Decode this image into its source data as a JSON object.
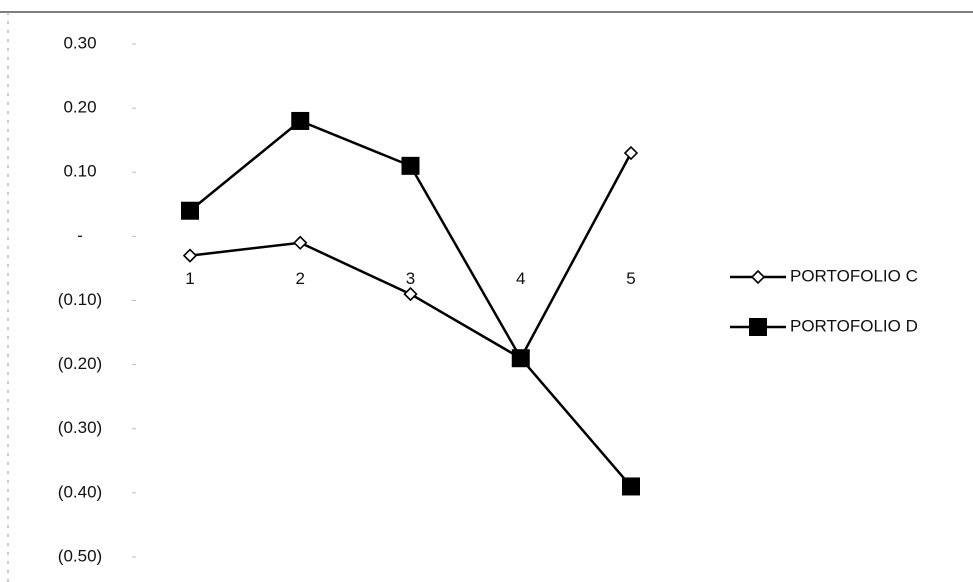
{
  "chart_data": {
    "type": "line",
    "categories": [
      "1",
      "2",
      "3",
      "4",
      "5"
    ],
    "series": [
      {
        "name": "PORTOFOLIO C",
        "color": "#000000",
        "marker": "diamond",
        "values": [
          -0.03,
          -0.01,
          -0.09,
          -0.19,
          0.13
        ]
      },
      {
        "name": "PORTOFOLIO D",
        "color": "#000000",
        "marker": "square",
        "values": [
          0.04,
          0.18,
          0.11,
          -0.19,
          -0.39
        ]
      }
    ],
    "ylim": [
      -0.5,
      0.3
    ],
    "yticks": [
      {
        "value": 0.3,
        "label": "0.30"
      },
      {
        "value": 0.2,
        "label": "0.20"
      },
      {
        "value": 0.1,
        "label": "0.10"
      },
      {
        "value": 0,
        "label": "-"
      },
      {
        "value": -0.1,
        "label": "(0.10)"
      },
      {
        "value": -0.2,
        "label": "(0.20)"
      },
      {
        "value": -0.3,
        "label": "(0.30)"
      },
      {
        "value": -0.4,
        "label": "(0.40)"
      },
      {
        "value": -0.5,
        "label": "(0.50)"
      }
    ],
    "grid": false,
    "legend": "right"
  }
}
